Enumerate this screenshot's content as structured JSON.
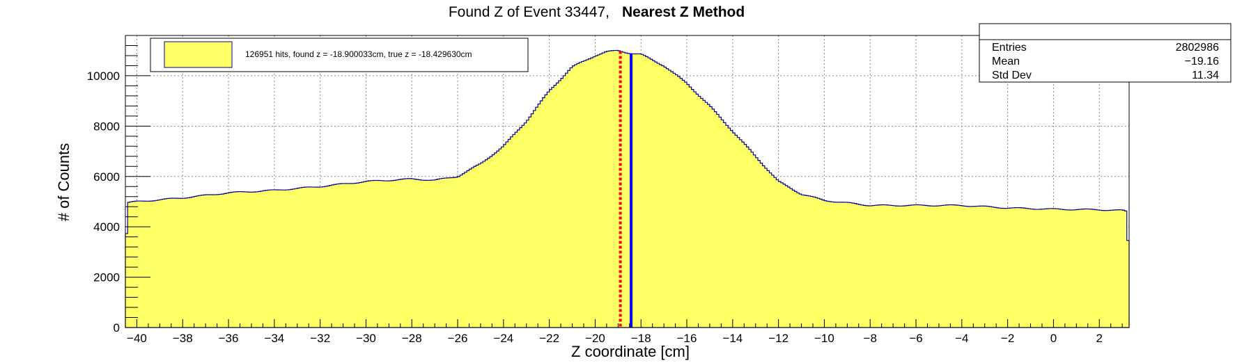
{
  "chart_data": {
    "type": "histogram",
    "title": "Found Z of Event 33447,",
    "title_bold": "Nearest Z Method",
    "xlabel": "Z coordinate [cm]",
    "ylabel": "# of Counts",
    "xlim": [
      -40.5,
      3.3
    ],
    "ylim": [
      0,
      11600
    ],
    "xticks": [
      -40,
      -38,
      -36,
      -34,
      -32,
      -30,
      -28,
      -26,
      -24,
      -22,
      -20,
      -18,
      -16,
      -14,
      -12,
      -10,
      -8,
      -6,
      -4,
      -2,
      0,
      2
    ],
    "yticks": [
      0,
      2000,
      4000,
      6000,
      8000,
      10000
    ],
    "grid": true,
    "fill_color": "#ffff66",
    "line_color": "#000099",
    "profile": {
      "x": [
        -40.5,
        -40.4,
        -40.0,
        -38.0,
        -36.0,
        -34.0,
        -32.0,
        -30.0,
        -28.0,
        -27.0,
        -26.0,
        -25.0,
        -24.0,
        -23.0,
        -22.0,
        -21.0,
        -20.0,
        -19.5,
        -19.0,
        -18.5,
        -18.0,
        -17.0,
        -16.0,
        -15.0,
        -14.0,
        -13.0,
        -12.0,
        -11.0,
        -10.0,
        -9.0,
        -8.0,
        -6.0,
        -4.0,
        -2.0,
        0.0,
        2.0,
        3.0,
        3.2,
        3.3
      ],
      "y": [
        2500,
        4960,
        5000,
        5150,
        5350,
        5450,
        5600,
        5800,
        5900,
        5850,
        6000,
        6500,
        7200,
        8200,
        9400,
        10350,
        10800,
        10950,
        11000,
        10900,
        10850,
        10400,
        9700,
        8800,
        7800,
        6800,
        5800,
        5300,
        5050,
        4950,
        4850,
        4850,
        4850,
        4750,
        4700,
        4680,
        4650,
        4600,
        2300
      ]
    },
    "markers": [
      {
        "x": -18.9,
        "color": "#ff0000",
        "style": "dotted"
      },
      {
        "x": -18.43,
        "color": "#0000ff",
        "style": "solid"
      }
    ],
    "legend": {
      "placement": "top-left",
      "label": "126951 hits, found z = -18.900033cm, true z = -18.429630cm"
    },
    "stats": {
      "placement": "top-right",
      "rows": [
        {
          "label": "Entries",
          "value": "2802986"
        },
        {
          "label": "Mean",
          "value": "−19.16"
        },
        {
          "label": "Std Dev",
          "value": "11.34"
        }
      ]
    }
  }
}
